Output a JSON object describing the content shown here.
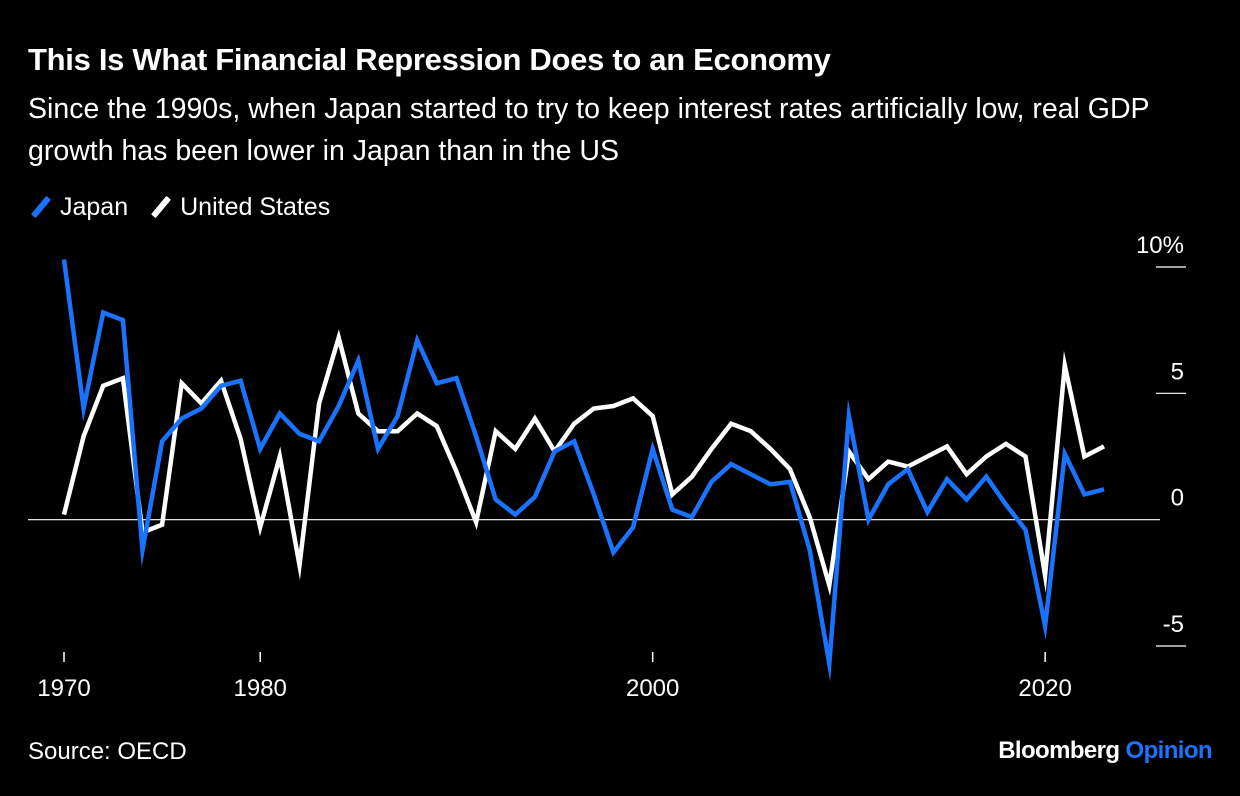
{
  "title": "This Is What Financial Repression Does to an Economy",
  "subtitle": "Since the 1990s, when Japan started to try to keep interest rates artificially low, real GDP growth has been lower in Japan than in the US",
  "source": "Source: OECD",
  "brand": {
    "name": "Bloomberg",
    "product": "Opinion"
  },
  "colors": {
    "background": "#000000",
    "japan": "#1a73ff",
    "united_states": "#ffffff",
    "brand_accent": "#1a73ff"
  },
  "chart_data": {
    "type": "line",
    "title": "This Is What Financial Repression Does to an Economy",
    "xlabel": "",
    "ylabel": "",
    "xlim": [
      1970,
      2023
    ],
    "ylim": [
      -5,
      10
    ],
    "grid": false,
    "legend_placement": "top-left",
    "x_tick_labels": [
      "1970",
      "1980",
      "2000",
      "2020"
    ],
    "x_tick_values": [
      1970,
      1980,
      2000,
      2020
    ],
    "y_tick_labels": [
      "10%",
      "5",
      "0",
      "-5"
    ],
    "y_tick_values": [
      10,
      5,
      0,
      -5
    ],
    "x": [
      1970,
      1971,
      1972,
      1973,
      1974,
      1975,
      1976,
      1977,
      1978,
      1979,
      1980,
      1981,
      1982,
      1983,
      1984,
      1985,
      1986,
      1987,
      1988,
      1989,
      1990,
      1991,
      1992,
      1993,
      1994,
      1995,
      1996,
      1997,
      1998,
      1999,
      2000,
      2001,
      2002,
      2003,
      2004,
      2005,
      2006,
      2007,
      2008,
      2009,
      2010,
      2011,
      2012,
      2013,
      2014,
      2015,
      2016,
      2017,
      2018,
      2019,
      2020,
      2021,
      2022,
      2023
    ],
    "series": [
      {
        "name": "Japan",
        "color": "#1a73ff",
        "values": [
          10.3,
          4.4,
          8.2,
          7.9,
          -1.2,
          3.1,
          4.0,
          4.4,
          5.3,
          5.5,
          2.8,
          4.2,
          3.4,
          3.1,
          4.5,
          6.3,
          2.8,
          4.1,
          7.1,
          5.4,
          5.6,
          3.3,
          0.8,
          0.2,
          0.9,
          2.7,
          3.1,
          1.0,
          -1.3,
          -0.3,
          2.8,
          0.4,
          0.1,
          1.5,
          2.2,
          1.8,
          1.4,
          1.5,
          -1.2,
          -5.7,
          4.1,
          0.0,
          1.4,
          2.0,
          0.3,
          1.6,
          0.8,
          1.7,
          0.6,
          -0.4,
          -4.2,
          2.6,
          1.0,
          1.2
        ]
      },
      {
        "name": "United States",
        "color": "#ffffff",
        "values": [
          0.2,
          3.3,
          5.3,
          5.6,
          -0.5,
          -0.2,
          5.4,
          4.6,
          5.5,
          3.2,
          -0.3,
          2.5,
          -1.8,
          4.6,
          7.2,
          4.2,
          3.5,
          3.5,
          4.2,
          3.7,
          1.9,
          -0.1,
          3.5,
          2.8,
          4.0,
          2.7,
          3.8,
          4.4,
          4.5,
          4.8,
          4.1,
          1.0,
          1.7,
          2.8,
          3.8,
          3.5,
          2.8,
          2.0,
          0.1,
          -2.6,
          2.7,
          1.6,
          2.3,
          2.1,
          2.5,
          2.9,
          1.8,
          2.5,
          3.0,
          2.5,
          -2.2,
          6.1,
          2.5,
          2.9
        ]
      }
    ]
  }
}
